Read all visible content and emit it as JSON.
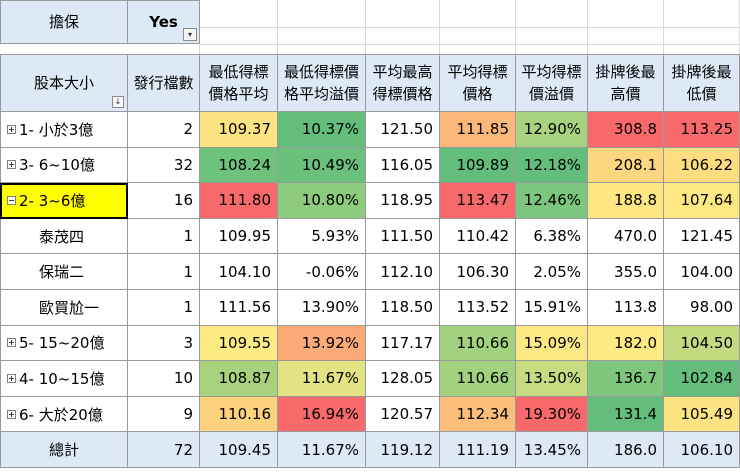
{
  "filter": {
    "label": "擔保",
    "value": "Yes"
  },
  "headers": [
    "股本大小",
    "發行檔數",
    "最低得標價格平均",
    "最低得標價格平均溢價",
    "平均最高得標價格",
    "平均得標價格",
    "平均得標價溢價",
    "掛牌後最高價",
    "掛牌後最低價"
  ],
  "header_lines": [
    [
      "股本大小"
    ],
    [
      "發行檔數"
    ],
    [
      "最低得標",
      "價格平均"
    ],
    [
      "最低得標價",
      "格平均溢價"
    ],
    [
      "平均最高",
      "得標價格"
    ],
    [
      "平均得標",
      "價格"
    ],
    [
      "平均得標",
      "價溢價"
    ],
    [
      "掛牌後最",
      "高價"
    ],
    [
      "掛牌後最",
      "低價"
    ]
  ],
  "rows": [
    {
      "label": "1- 小於3億",
      "expander": "plus",
      "values": [
        "2",
        "109.37",
        "10.37%",
        "121.50",
        "111.85",
        "12.90%",
        "308.8",
        "113.25"
      ],
      "colors": [
        "#ffffff",
        "#fee383",
        "#63be7b",
        "#ffffff",
        "#fcb77a",
        "#a7d27f",
        "#f8696b",
        "#f8696b"
      ]
    },
    {
      "label": "3- 6~10億",
      "expander": "plus",
      "values": [
        "32",
        "108.24",
        "10.49%",
        "116.05",
        "109.89",
        "12.18%",
        "208.1",
        "106.22"
      ],
      "colors": [
        "#ffffff",
        "#6dc27c",
        "#6bc07b",
        "#ffffff",
        "#63be7b",
        "#63be7b",
        "#fdd680",
        "#fedd81"
      ]
    },
    {
      "label": "2- 3~6億",
      "expander": "minus",
      "values": [
        "16",
        "111.80",
        "10.80%",
        "118.95",
        "113.47",
        "12.46%",
        "188.8",
        "107.64"
      ],
      "colors": [
        "#ffffff",
        "#f8696b",
        "#8ccb7e",
        "#ffffff",
        "#f8696b",
        "#7dc67d",
        "#fee683",
        "#fee883"
      ],
      "highlight": true
    },
    {
      "label": "泰茂四",
      "child": true,
      "values": [
        "1",
        "109.95",
        "5.93%",
        "111.50",
        "110.42",
        "6.38%",
        "470.0",
        "121.45"
      ]
    },
    {
      "label": "保瑞二",
      "child": true,
      "values": [
        "1",
        "104.10",
        "-0.06%",
        "112.10",
        "106.30",
        "2.05%",
        "355.0",
        "104.00"
      ]
    },
    {
      "label": "歐買尬一",
      "child": true,
      "values": [
        "1",
        "111.56",
        "13.90%",
        "118.50",
        "113.52",
        "15.91%",
        "113.8",
        "98.00"
      ]
    },
    {
      "label": "5- 15~20億",
      "expander": "plus",
      "values": [
        "3",
        "109.55",
        "13.92%",
        "117.17",
        "110.66",
        "15.09%",
        "182.0",
        "104.50"
      ],
      "colors": [
        "#ffffff",
        "#ffeb84",
        "#fcaa78",
        "#ffffff",
        "#a2d17f",
        "#fee883",
        "#ffeb84",
        "#c3da81"
      ]
    },
    {
      "label": "4- 10~15億",
      "expander": "plus",
      "values": [
        "10",
        "108.87",
        "11.67%",
        "128.05",
        "110.66",
        "13.50%",
        "136.7",
        "102.84"
      ],
      "colors": [
        "#ffffff",
        "#a9d27f",
        "#e3e383",
        "#ffffff",
        "#a2d17f",
        "#c7db81",
        "#7fc77d",
        "#63be7b"
      ]
    },
    {
      "label": "6- 大於20億",
      "expander": "plus",
      "values": [
        "9",
        "110.16",
        "16.94%",
        "120.57",
        "112.34",
        "19.30%",
        "131.4",
        "105.49"
      ],
      "colors": [
        "#ffffff",
        "#fdd27f",
        "#f8696b",
        "#ffffff",
        "#fcbe7b",
        "#f8696b",
        "#63be7b",
        "#fde382"
      ]
    }
  ],
  "total": {
    "label": "總計",
    "values": [
      "72",
      "109.45",
      "11.67%",
      "119.12",
      "111.19",
      "13.45%",
      "186.0",
      "106.10"
    ]
  }
}
